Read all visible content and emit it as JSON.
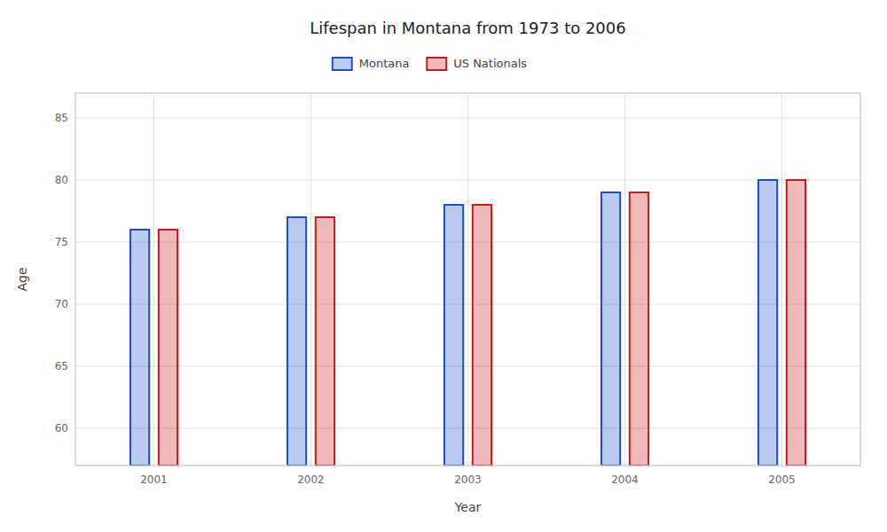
{
  "chart_data": {
    "type": "bar",
    "title": "Lifespan in Montana from 1973 to 2006",
    "xlabel": "Year",
    "ylabel": "Age",
    "categories": [
      "2001",
      "2002",
      "2003",
      "2004",
      "2005"
    ],
    "series": [
      {
        "name": "Montana",
        "color": "#1a4fcc",
        "values": [
          76,
          77,
          78,
          79,
          80
        ]
      },
      {
        "name": "US Nationals",
        "color": "#cc1a1a",
        "values": [
          76,
          77,
          78,
          79,
          80
        ]
      }
    ],
    "ylim": [
      57,
      87
    ],
    "yticks": [
      60,
      65,
      70,
      75,
      80,
      85
    ],
    "grid": true,
    "legend": "top"
  }
}
